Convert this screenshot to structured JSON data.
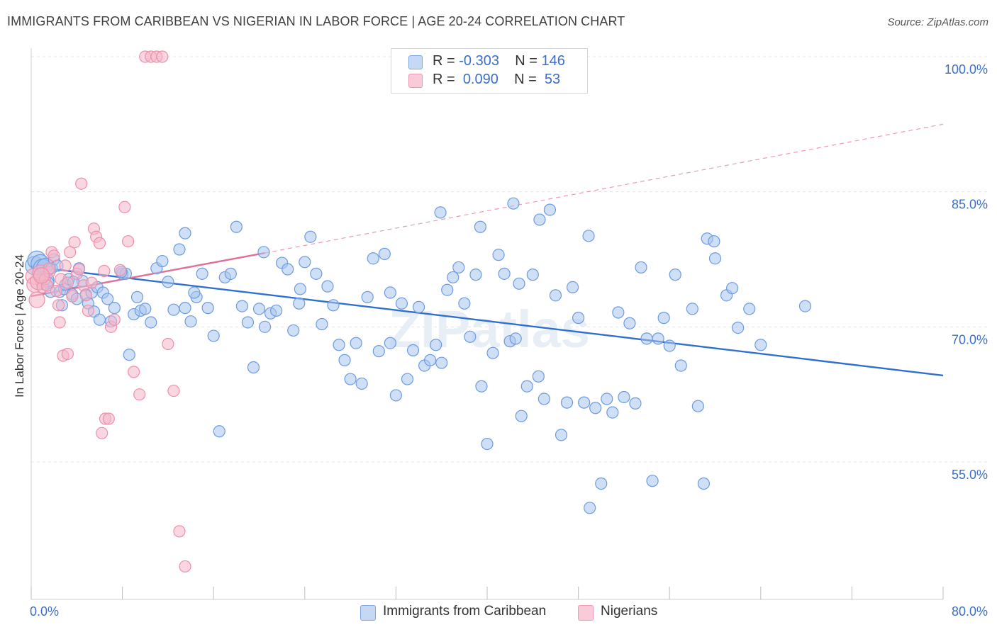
{
  "title": "IMMIGRANTS FROM CARIBBEAN VS NIGERIAN IN LABOR FORCE | AGE 20-24 CORRELATION CHART",
  "source": "Source: ZipAtlas.com",
  "watermark": "ZIPatlas",
  "legend": {
    "r_label": "R =",
    "n_label": "N =",
    "rows": [
      {
        "r": "-0.303",
        "n": "146",
        "color": "#a8c4ef"
      },
      {
        "r": "0.090",
        "n": "53",
        "color": "#f4b6c8"
      }
    ]
  },
  "bottom_legend": [
    "Immigrants from Caribbean",
    "Nigerians"
  ],
  "chart_data": {
    "type": "scatter",
    "xlabel": "",
    "ylabel": "In Labor Force | Age 20-24",
    "xlim": [
      0,
      80
    ],
    "ylim": [
      38,
      100
    ],
    "x_tick_labels": [
      "0.0%",
      "80.0%"
    ],
    "y_tick_labels": [
      "100.0%",
      "85.0%",
      "70.0%",
      "55.0%"
    ],
    "y_ticks": [
      100,
      85,
      70,
      55
    ],
    "grid": true,
    "legend_placement": "top-center",
    "series": [
      {
        "name": "Immigrants from Caribbean",
        "color": "#6d9be0",
        "fill": "#a8c4ef",
        "trend": {
          "x": [
            0,
            80
          ],
          "y": [
            76.7,
            64.6
          ],
          "color": "#2f6fd0"
        },
        "points": [
          [
            0.3,
            76.8
          ],
          [
            0.5,
            77.4
          ],
          [
            0.8,
            77.0
          ],
          [
            1.0,
            76.5
          ],
          [
            1.2,
            75.1
          ],
          [
            1.3,
            76.6
          ],
          [
            1.5,
            74.9
          ],
          [
            1.7,
            73.9
          ],
          [
            1.8,
            76.5
          ],
          [
            2.0,
            77.5
          ],
          [
            2.3,
            76.8
          ],
          [
            2.5,
            73.9
          ],
          [
            2.7,
            72.4
          ],
          [
            2.9,
            74.2
          ],
          [
            3.0,
            74.7
          ],
          [
            3.3,
            75.3
          ],
          [
            3.6,
            73.6
          ],
          [
            4.0,
            73.1
          ],
          [
            4.2,
            76.5
          ],
          [
            4.5,
            75.1
          ],
          [
            4.8,
            73.6
          ],
          [
            5.0,
            72.6
          ],
          [
            5.3,
            73.8
          ],
          [
            5.5,
            71.7
          ],
          [
            5.8,
            74.4
          ],
          [
            6.0,
            70.8
          ],
          [
            6.3,
            73.8
          ],
          [
            6.7,
            73.1
          ],
          [
            7.0,
            70.6
          ],
          [
            7.3,
            72.1
          ],
          [
            8.0,
            75.9
          ],
          [
            8.3,
            75.9
          ],
          [
            8.6,
            66.9
          ],
          [
            9.0,
            71.4
          ],
          [
            9.3,
            73.3
          ],
          [
            9.6,
            71.8
          ],
          [
            10.0,
            72.0
          ],
          [
            10.5,
            70.5
          ],
          [
            11.0,
            76.5
          ],
          [
            11.5,
            77.3
          ],
          [
            12.0,
            75.0
          ],
          [
            12.5,
            71.9
          ],
          [
            13.0,
            78.6
          ],
          [
            13.5,
            72.1
          ],
          [
            14.0,
            70.6
          ],
          [
            14.5,
            73.3
          ],
          [
            15.0,
            75.9
          ],
          [
            15.5,
            72.1
          ],
          [
            16.0,
            69.0
          ],
          [
            16.5,
            58.4
          ],
          [
            17.0,
            75.5
          ],
          [
            17.5,
            75.9
          ],
          [
            18.0,
            81.1
          ],
          [
            18.5,
            72.3
          ],
          [
            19.0,
            70.5
          ],
          [
            19.5,
            65.5
          ],
          [
            20.0,
            72.0
          ],
          [
            20.5,
            70.0
          ],
          [
            21.0,
            71.5
          ],
          [
            21.5,
            71.8
          ],
          [
            22.0,
            77.1
          ],
          [
            22.5,
            76.4
          ],
          [
            23.0,
            69.6
          ],
          [
            23.5,
            72.6
          ],
          [
            24.0,
            77.2
          ],
          [
            24.5,
            80.0
          ],
          [
            25.0,
            75.9
          ],
          [
            25.5,
            70.3
          ],
          [
            26.0,
            74.5
          ],
          [
            26.5,
            72.4
          ],
          [
            27.0,
            68.0
          ],
          [
            27.5,
            66.3
          ],
          [
            28.0,
            64.2
          ],
          [
            28.5,
            68.2
          ],
          [
            29.0,
            63.7
          ],
          [
            29.5,
            73.3
          ],
          [
            30.0,
            77.6
          ],
          [
            30.5,
            67.3
          ],
          [
            31.0,
            78.1
          ],
          [
            31.5,
            68.2
          ],
          [
            32.0,
            62.4
          ],
          [
            32.5,
            72.6
          ],
          [
            33.0,
            64.2
          ],
          [
            33.5,
            67.4
          ],
          [
            34.0,
            72.2
          ],
          [
            34.5,
            65.7
          ],
          [
            35.0,
            66.3
          ],
          [
            35.5,
            68.0
          ],
          [
            36.0,
            66.0
          ],
          [
            36.5,
            74.1
          ],
          [
            37.0,
            75.5
          ],
          [
            37.5,
            76.6
          ],
          [
            38.0,
            72.6
          ],
          [
            38.5,
            68.9
          ],
          [
            39.0,
            75.8
          ],
          [
            39.5,
            63.4
          ],
          [
            40.0,
            57.0
          ],
          [
            40.5,
            67.1
          ],
          [
            41.0,
            78.0
          ],
          [
            41.5,
            75.9
          ],
          [
            42.0,
            68.4
          ],
          [
            42.5,
            68.7
          ],
          [
            43.0,
            60.1
          ],
          [
            43.5,
            63.4
          ],
          [
            44.0,
            75.8
          ],
          [
            44.5,
            64.5
          ],
          [
            45.0,
            62.0
          ],
          [
            45.5,
            83.0
          ],
          [
            46.0,
            73.5
          ],
          [
            46.5,
            58.0
          ],
          [
            47.0,
            61.6
          ],
          [
            47.5,
            74.4
          ],
          [
            48.0,
            71.0
          ],
          [
            48.5,
            61.6
          ],
          [
            49.0,
            49.9
          ],
          [
            49.5,
            61.0
          ],
          [
            50.0,
            52.6
          ],
          [
            50.5,
            62.0
          ],
          [
            51.0,
            60.5
          ],
          [
            51.5,
            71.6
          ],
          [
            52.0,
            62.2
          ],
          [
            52.5,
            70.4
          ],
          [
            53.0,
            61.5
          ],
          [
            53.5,
            76.6
          ],
          [
            54.0,
            68.7
          ],
          [
            54.5,
            52.9
          ],
          [
            55.0,
            68.7
          ],
          [
            55.5,
            71.0
          ],
          [
            56.0,
            67.9
          ],
          [
            56.5,
            75.8
          ],
          [
            57.0,
            65.7
          ],
          [
            58.0,
            72.0
          ],
          [
            58.5,
            61.2
          ],
          [
            59.0,
            52.6
          ],
          [
            60.0,
            77.6
          ],
          [
            61.0,
            73.5
          ],
          [
            61.5,
            74.3
          ],
          [
            62.0,
            69.9
          ],
          [
            63.0,
            72.0
          ],
          [
            64.0,
            68.0
          ],
          [
            13.5,
            80.4
          ],
          [
            20.4,
            78.3
          ],
          [
            35.9,
            82.7
          ],
          [
            39.4,
            81.1
          ],
          [
            42.3,
            83.7
          ],
          [
            44.6,
            81.9
          ],
          [
            48.9,
            80.1
          ],
          [
            59.3,
            79.8
          ],
          [
            7.9,
            76.1
          ],
          [
            3.7,
            75.0
          ],
          [
            14.3,
            73.8
          ],
          [
            23.6,
            74.2
          ],
          [
            31.5,
            73.8
          ],
          [
            42.8,
            74.8
          ],
          [
            59.9,
            79.5
          ],
          [
            67.9,
            72.3
          ]
        ]
      },
      {
        "name": "Nigerians",
        "color": "#ee8fac",
        "fill": "#f4b6c8",
        "trend": {
          "x": [
            0,
            20.5
          ],
          "y": [
            73.4,
            78.2
          ],
          "color": "#e0709a"
        },
        "trend_extension": {
          "x": [
            20.5,
            80
          ],
          "y": [
            78.2,
            92.5
          ]
        },
        "points": [
          [
            0.2,
            75.6
          ],
          [
            0.3,
            74.7
          ],
          [
            0.5,
            73.0
          ],
          [
            0.6,
            75.0
          ],
          [
            0.8,
            76.0
          ],
          [
            1.0,
            74.4
          ],
          [
            1.2,
            75.3
          ],
          [
            1.4,
            74.6
          ],
          [
            1.6,
            76.1
          ],
          [
            1.8,
            78.3
          ],
          [
            2.0,
            77.9
          ],
          [
            2.2,
            74.0
          ],
          [
            2.4,
            72.4
          ],
          [
            2.6,
            75.3
          ],
          [
            2.8,
            66.8
          ],
          [
            3.0,
            76.8
          ],
          [
            3.2,
            74.9
          ],
          [
            3.4,
            78.3
          ],
          [
            3.6,
            73.4
          ],
          [
            3.8,
            79.4
          ],
          [
            4.0,
            75.9
          ],
          [
            4.2,
            76.4
          ],
          [
            4.4,
            85.9
          ],
          [
            4.6,
            74.6
          ],
          [
            4.8,
            73.5
          ],
          [
            5.0,
            71.8
          ],
          [
            5.3,
            74.9
          ],
          [
            5.5,
            80.9
          ],
          [
            5.7,
            80.0
          ],
          [
            6.0,
            79.3
          ],
          [
            6.2,
            58.2
          ],
          [
            6.5,
            59.8
          ],
          [
            6.8,
            59.8
          ],
          [
            7.0,
            70.0
          ],
          [
            7.3,
            70.8
          ],
          [
            7.8,
            76.3
          ],
          [
            8.2,
            83.3
          ],
          [
            8.5,
            79.5
          ],
          [
            9.0,
            65.0
          ],
          [
            9.5,
            62.5
          ],
          [
            10.0,
            100.0
          ],
          [
            10.5,
            100.0
          ],
          [
            11.0,
            100.0
          ],
          [
            11.5,
            100.0
          ],
          [
            12.0,
            68.1
          ],
          [
            12.5,
            62.9
          ],
          [
            13.0,
            47.3
          ],
          [
            13.5,
            43.4
          ],
          [
            3.2,
            67.0
          ],
          [
            2.5,
            70.5
          ],
          [
            6.4,
            76.2
          ],
          [
            1.6,
            76.5
          ],
          [
            0.9,
            75.7
          ]
        ]
      }
    ]
  }
}
